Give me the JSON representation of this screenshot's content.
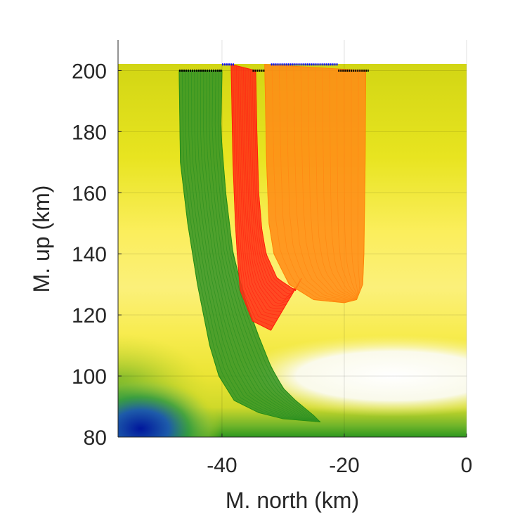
{
  "chart_data": {
    "type": "line",
    "title": "",
    "xlabel": "M. north (km)",
    "ylabel": "M. up (km)",
    "xlim": [
      -57,
      0
    ],
    "ylim": [
      80,
      210
    ],
    "xticks": [
      -40,
      -20,
      0
    ],
    "yticks": [
      80,
      100,
      120,
      140,
      160,
      180,
      200
    ],
    "grid": true,
    "legend": "none",
    "background": {
      "type": "heatmap",
      "x_range": [
        -57,
        0
      ],
      "y_range": [
        80,
        202
      ],
      "colormap": [
        "#00209f",
        "#2b8f1e",
        "#d7db1a",
        "#fdf27e",
        "#fbfbfb"
      ],
      "features": [
        {
          "kind": "minimum",
          "x": -54,
          "y": 82
        },
        {
          "kind": "maximum",
          "x": -18,
          "y": 99
        }
      ]
    },
    "series": [
      {
        "color": "#1f8a10",
        "x_start": -47,
        "x_end": -40,
        "y_start": 200,
        "left_edge": [
          [
            -47,
            200
          ],
          [
            -46.8,
            170
          ],
          [
            -45.6,
            150
          ],
          [
            -44,
            130
          ],
          [
            -42,
            110
          ],
          [
            -40.5,
            100
          ],
          [
            -38,
            92
          ],
          [
            -34,
            88
          ],
          [
            -30,
            86
          ],
          [
            -24,
            85
          ]
        ],
        "right_edge": [
          [
            -40,
            200
          ],
          [
            -40.2,
            180
          ],
          [
            -39.4,
            160
          ],
          [
            -38.2,
            140
          ],
          [
            -36.2,
            125
          ],
          [
            -34,
            113
          ],
          [
            -32,
            103
          ],
          [
            -30,
            96
          ],
          [
            -28,
            92
          ],
          [
            -25,
            87
          ],
          [
            -24,
            85
          ]
        ]
      },
      {
        "color": "#ff1a00",
        "x_start": -38,
        "x_end": -34,
        "y_start": 202,
        "bottom_y": 115,
        "left_edge": [
          [
            -38.5,
            202
          ],
          [
            -38.2,
            170
          ],
          [
            -37.8,
            150
          ],
          [
            -37.5,
            140
          ],
          [
            -37,
            128
          ],
          [
            -35,
            118
          ],
          [
            -32,
            115
          ]
        ],
        "right_edge": [
          [
            -34.5,
            200
          ],
          [
            -34.3,
            180
          ],
          [
            -34,
            160
          ],
          [
            -33.5,
            148
          ],
          [
            -32.8,
            140
          ],
          [
            -31,
            132
          ],
          [
            -28,
            128
          ],
          [
            -27,
            132
          ]
        ]
      },
      {
        "color": "#ff8000",
        "x_start": -33,
        "x_end": -16,
        "y_start": 202,
        "bottom_y": 124,
        "left_edge": [
          [
            -33,
            202
          ],
          [
            -32.7,
            170
          ],
          [
            -32.3,
            150
          ],
          [
            -31.5,
            140
          ],
          [
            -29,
            130
          ],
          [
            -25,
            125
          ],
          [
            -20,
            124
          ],
          [
            -18,
            125
          ]
        ],
        "right_edge": [
          [
            -16.5,
            200
          ],
          [
            -16.6,
            170
          ],
          [
            -16.8,
            140
          ],
          [
            -17,
            130
          ],
          [
            -18,
            125
          ]
        ]
      }
    ],
    "top_markers": [
      {
        "color": "#000000",
        "x_range": [
          -47,
          -40
        ],
        "y": 200
      },
      {
        "color": "#0000ff",
        "x_range": [
          -40,
          -38
        ],
        "y": 202
      },
      {
        "color": "#000000",
        "x_range": [
          -35,
          -33
        ],
        "y": 200
      },
      {
        "color": "#0000ff",
        "x_range": [
          -32,
          -21
        ],
        "y": 202
      },
      {
        "color": "#000000",
        "x_range": [
          -21,
          -16
        ],
        "y": 200
      }
    ]
  }
}
